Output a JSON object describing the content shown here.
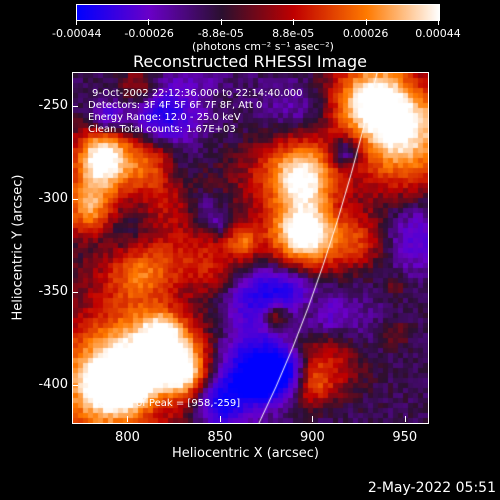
{
  "colorbar": {
    "tick_labels": [
      "-0.00044",
      "-0.00026",
      "-8.8e-05",
      "8.8e-05",
      "0.00026",
      "0.00044"
    ],
    "unit_label": "(photons cm⁻² s⁻¹ asec⁻²)",
    "colors": [
      "#0000ff",
      "#6a00c8",
      "#2b1030",
      "#c00000",
      "#ff7a00",
      "#ffffff"
    ]
  },
  "plot": {
    "title": "Reconstructed RHESSI Image",
    "xlabel": "Heliocentric X (arcsec)",
    "ylabel": "Heliocentric Y (arcsec)",
    "x_ticks": [
      "800",
      "850",
      "900",
      "950"
    ],
    "y_ticks": [
      "-250",
      "-300",
      "-350",
      "-400"
    ],
    "xlim": [
      770,
      962
    ],
    "ylim": [
      -420,
      -232
    ],
    "info_lines": [
      "9-Oct-2002 22:12:36.000 to 22:14:40.000",
      "Detectors: 3F 4F 5F 6F 7F 8F, Att 0",
      "Energy Range: 12.0 - 25.0 keV",
      "Clean    Total counts: 1.67E+03"
    ],
    "peak_label": "Position of Peak = [958,-259]",
    "limb_color": "#ffffff"
  },
  "footer": {
    "timestamp": "2-May-2022 05:51"
  }
}
